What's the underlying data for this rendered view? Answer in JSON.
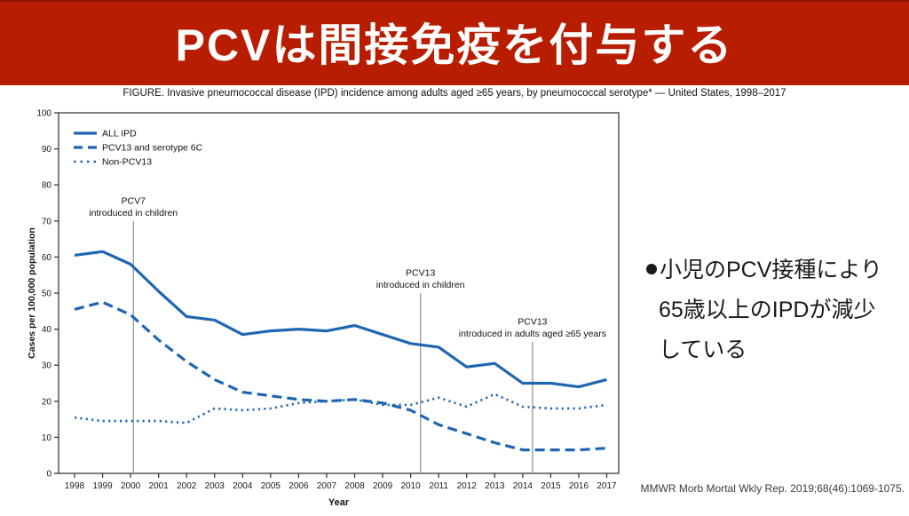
{
  "slide": {
    "title": "PCVは間接免疫を付与する",
    "bullet_marker": "●",
    "bullet_lines": [
      "小児のPCV接種により",
      "65歳以上のIPDが減少",
      "している"
    ],
    "citation": "MMWR Morb Mortal Wkly Rep. 2019;68(46):1069-1075.",
    "colors": {
      "banner_red": "#b91d00",
      "chart_blue": "#1f66b2"
    }
  },
  "figure": {
    "caption": "FIGURE. Invasive pneumococcal disease (IPD) incidence among adults aged ≥65 years, by pneumococcal serotype* — United States, 1998–2017"
  },
  "chart_data": {
    "type": "line",
    "xlabel": "Year",
    "ylabel": "Cases per 100,000 population",
    "ylim": [
      0,
      100
    ],
    "ytick_step": 10,
    "x": [
      1998,
      1999,
      2000,
      2001,
      2002,
      2003,
      2004,
      2005,
      2006,
      2007,
      2008,
      2009,
      2010,
      2011,
      2012,
      2013,
      2014,
      2015,
      2016,
      2017
    ],
    "series": [
      {
        "name": "ALL IPD",
        "style": "solid",
        "values": [
          60.5,
          61.5,
          58,
          50.5,
          43.5,
          42.5,
          38.5,
          39.5,
          40,
          39.5,
          41,
          38.5,
          36,
          35,
          29.5,
          30.5,
          25,
          25,
          24,
          26
        ]
      },
      {
        "name": "PCV13 and serotype 6C",
        "style": "dashed",
        "values": [
          45.5,
          47.5,
          44,
          37,
          31,
          26,
          22.5,
          21.5,
          20.5,
          20,
          20.5,
          19.5,
          17.5,
          13.5,
          11,
          8.5,
          6.5,
          6.5,
          6.5,
          7
        ]
      },
      {
        "name": "Non-PCV13",
        "style": "dotted",
        "values": [
          15.5,
          14.5,
          14.5,
          14.5,
          14,
          18,
          17.5,
          18,
          19.5,
          20,
          20.5,
          19,
          19,
          21,
          18.5,
          22,
          18.5,
          18,
          18,
          19
        ]
      }
    ],
    "annotations": [
      {
        "label": [
          "PCV7",
          "introduced in children"
        ],
        "x": 2000.1,
        "line_top": 70
      },
      {
        "label": [
          "PCV13",
          "introduced in children"
        ],
        "x": 2010.35,
        "line_top": 50
      },
      {
        "label": [
          "PCV13",
          "introduced in adults aged ≥65 years"
        ],
        "x": 2014.35,
        "line_top": 36.5
      }
    ],
    "legend_position": "top-left",
    "grid": false
  }
}
